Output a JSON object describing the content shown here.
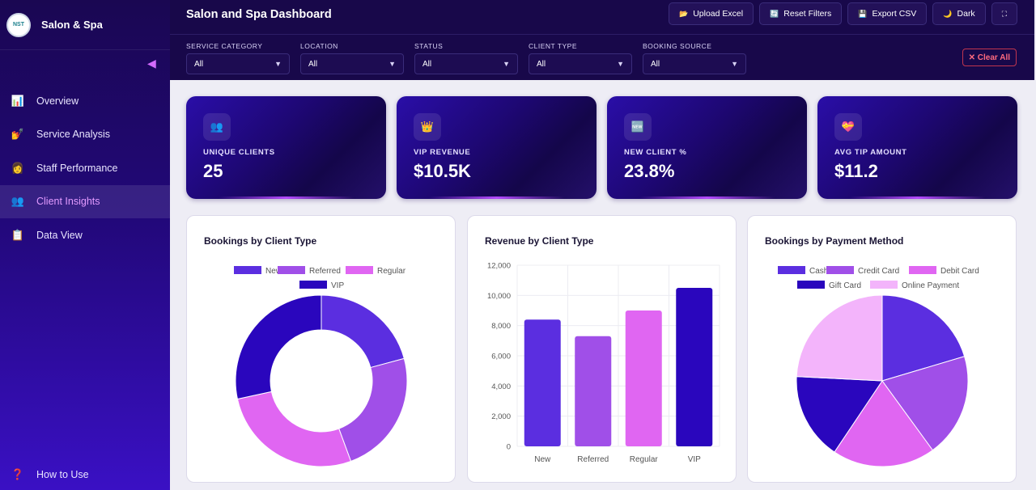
{
  "sidebar": {
    "brand_logo": "NST",
    "brand_name": "Salon & Spa",
    "collapse_icon": "◀",
    "items": [
      {
        "label": "Overview",
        "icon": "📊"
      },
      {
        "label": "Service Analysis",
        "icon": "💅"
      },
      {
        "label": "Staff Performance",
        "icon": "👩"
      },
      {
        "label": "Client Insights",
        "icon": "👥"
      },
      {
        "label": "Data View",
        "icon": "📋"
      }
    ],
    "active_item": "Client Insights",
    "howto": {
      "label": "How to Use",
      "icon": "❓"
    }
  },
  "header": {
    "title": "Salon and Spa Dashboard",
    "buttons": [
      {
        "label": "Upload Excel",
        "icon": "📂"
      },
      {
        "label": "Reset Filters",
        "icon": "🔄"
      },
      {
        "label": "Export CSV",
        "icon": "💾"
      },
      {
        "label": "Dark",
        "icon": "🌙"
      },
      {
        "label": "",
        "icon": "⛶"
      }
    ],
    "filters": [
      {
        "label": "SERVICE CATEGORY",
        "value": "All"
      },
      {
        "label": "LOCATION",
        "value": "All"
      },
      {
        "label": "STATUS",
        "value": "All"
      },
      {
        "label": "CLIENT TYPE",
        "value": "All"
      },
      {
        "label": "BOOKING SOURCE",
        "value": "All"
      }
    ],
    "caret": "▼",
    "clear_all": "✕ Clear All"
  },
  "kpis": [
    {
      "label": "UNIQUE CLIENTS",
      "value": "25",
      "icon": "👥"
    },
    {
      "label": "VIP REVENUE",
      "value": "$10.5K",
      "icon": "👑"
    },
    {
      "label": "NEW CLIENT %",
      "value": "23.8%",
      "icon": "🆕"
    },
    {
      "label": "AVG TIP AMOUNT",
      "value": "$11.2",
      "icon": "💝"
    }
  ],
  "chart_data": [
    {
      "type": "pie",
      "variant": "doughnut",
      "title": "Bookings by Client Type",
      "categories": [
        "New",
        "Referred",
        "Regular",
        "VIP"
      ],
      "values": [
        20.8,
        23.6,
        27.2,
        28.4
      ],
      "colors": [
        "#5b2ee0",
        "#a04fe8",
        "#e066f2",
        "#2a06bd"
      ],
      "legend": "top"
    },
    {
      "type": "bar",
      "title": "Revenue by Client Type",
      "categories": [
        "New",
        "Referred",
        "Regular",
        "VIP"
      ],
      "values": [
        8400,
        7300,
        9000,
        10500
      ],
      "colors": [
        "#5b2ee0",
        "#a04fe8",
        "#e066f2",
        "#2a06bd"
      ],
      "ylim": [
        0,
        12000
      ],
      "yticks": [
        "12,000",
        "10,000",
        "8,000",
        "6,000",
        "4,000",
        "2,000",
        "0"
      ],
      "grid": true
    },
    {
      "type": "pie",
      "title": "Bookings by Payment Method",
      "categories": [
        "Cash",
        "Credit Card",
        "Debit Card",
        "Gift Card",
        "Online Payment"
      ],
      "values": [
        20.4,
        19.6,
        19.4,
        16.4,
        24.2
      ],
      "colors": [
        "#5b2ee0",
        "#a04fe8",
        "#e066f2",
        "#2a06bd",
        "#f3b4fb"
      ],
      "legend": "top"
    }
  ]
}
